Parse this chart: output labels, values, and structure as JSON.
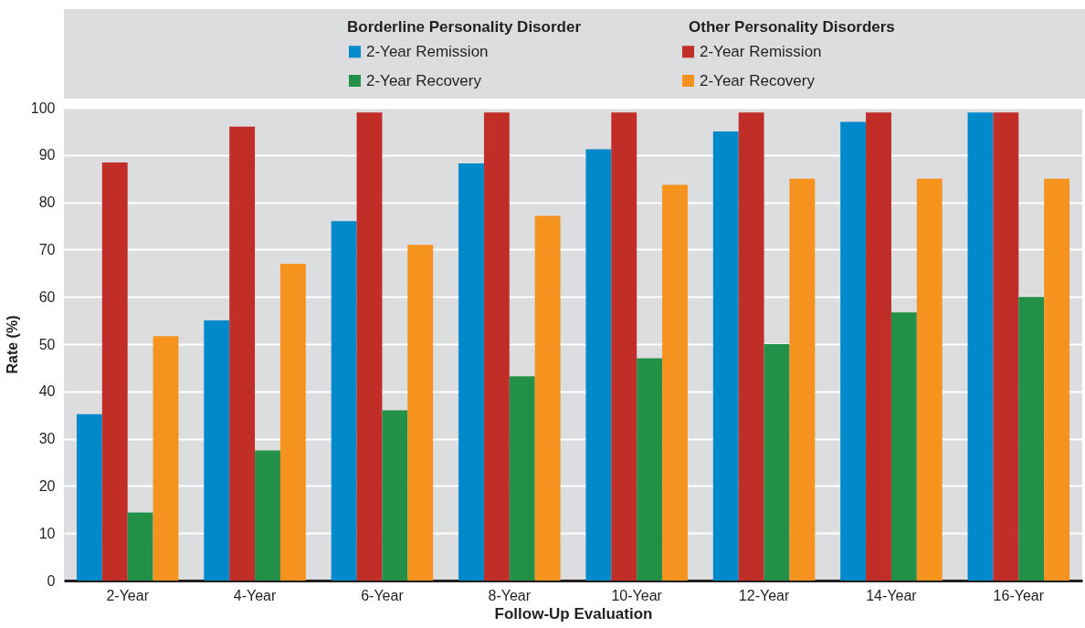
{
  "chart_data": {
    "type": "bar",
    "xlabel": "Follow-Up Evaluation",
    "ylabel": "Rate (%)",
    "categories": [
      "2-Year",
      "4-Year",
      "6-Year",
      "8-Year",
      "10-Year",
      "12-Year",
      "14-Year",
      "16-Year"
    ],
    "series": [
      {
        "name": "2-Year Remission",
        "color": "#0089cb",
        "values": [
          35.2,
          55,
          76,
          88.2,
          91.2,
          95,
          97,
          99
        ]
      },
      {
        "name": "2-Year Remission",
        "color": "#c12d27",
        "values": [
          88.4,
          96,
          99,
          99,
          99,
          99,
          99,
          99
        ]
      },
      {
        "name": "2-Year Recovery",
        "color": "#239048",
        "values": [
          14.4,
          27.5,
          36,
          43.2,
          47,
          50,
          56.7,
          60
        ]
      },
      {
        "name": "2-Year Recovery",
        "color": "#f6921e",
        "values": [
          51.7,
          67,
          71,
          77.1,
          83.7,
          85,
          85,
          85
        ]
      }
    ],
    "annotations": [
      "Borderline Personality Disorder",
      "Other Personality Disorders"
    ],
    "ylim": [
      0,
      100
    ],
    "yticks": [
      0,
      10,
      20,
      30,
      40,
      50,
      60,
      70,
      80,
      90,
      100
    ],
    "grid": "y",
    "legend": "top"
  }
}
